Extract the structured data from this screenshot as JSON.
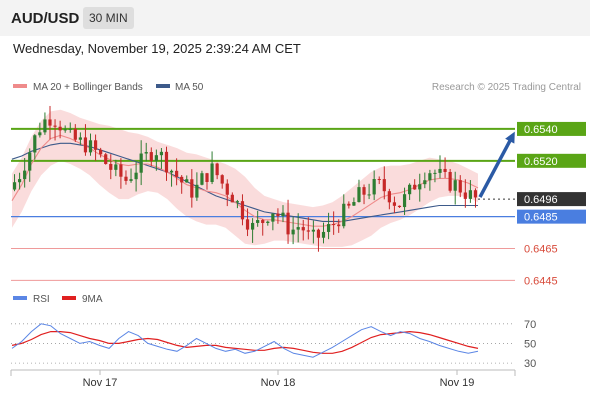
{
  "header": {
    "pair": "AUD/USD",
    "timeframe": "30 MIN",
    "datetime": "Wednesday, November 19, 2025 2:39:24 AM CET"
  },
  "legend": {
    "ma20": "MA 20 + Bollinger Bands",
    "ma50": "MA 50",
    "credit": "Research © 2025 Trading Central"
  },
  "colors": {
    "up": "#2e7d32",
    "down": "#c62828",
    "ma20": "#ef8b8b",
    "ma50": "#3d5a8a",
    "band": "#f9d6d6",
    "green_level": "#5aa516",
    "blue_level": "#4a7ee0",
    "red_level": "#ef9a9a",
    "arrow": "#2b5aa5",
    "rsi": "#5b86e5",
    "rsi_ma": "#e02020"
  },
  "chart_data": [
    {
      "type": "candlestick",
      "title": "AUD/USD 30 MIN",
      "price_range": [
        0.6439,
        0.6555
      ],
      "x_ticks": [
        "Nov 17",
        "Nov 18",
        "Nov 19"
      ],
      "last_price": "0.6496",
      "levels": [
        {
          "value": 0.654,
          "label": "0.6540",
          "kind": "resistance"
        },
        {
          "value": 0.652,
          "label": "0.6520",
          "kind": "resistance"
        },
        {
          "value": 0.6496,
          "label": "0.6496",
          "kind": "last"
        },
        {
          "value": 0.6485,
          "label": "0.6485",
          "kind": "pivot"
        },
        {
          "value": 0.6465,
          "label": "0.6465",
          "kind": "support"
        },
        {
          "value": 0.6445,
          "label": "0.6445",
          "kind": "support"
        }
      ],
      "close_path": [
        0.6502,
        0.6511,
        0.6525,
        0.654,
        0.6548,
        0.6545,
        0.6535,
        0.6532,
        0.653,
        0.6525,
        0.6518,
        0.6512,
        0.6508,
        0.6515,
        0.6522,
        0.6528,
        0.652,
        0.6512,
        0.6505,
        0.65,
        0.651,
        0.6515,
        0.6505,
        0.6498,
        0.6488,
        0.6478,
        0.6482,
        0.649,
        0.6484,
        0.6476,
        0.648,
        0.647,
        0.6473,
        0.6478,
        0.6485,
        0.649,
        0.6498,
        0.6502,
        0.6505,
        0.65,
        0.6492,
        0.6498,
        0.6508,
        0.6515,
        0.6512,
        0.6507,
        0.6505,
        0.65,
        0.6496
      ],
      "ma20_path": [
        0.6495,
        0.6505,
        0.6518,
        0.6528,
        0.6534,
        0.6536,
        0.6534,
        0.6531,
        0.6528,
        0.6524,
        0.6521,
        0.6518,
        0.6517,
        0.6518,
        0.6518,
        0.6516,
        0.6513,
        0.6509,
        0.6505,
        0.6503,
        0.6501,
        0.65,
        0.6498,
        0.6494,
        0.6489,
        0.6485,
        0.6483,
        0.6483,
        0.6482,
        0.6481,
        0.648,
        0.6479,
        0.6479,
        0.648,
        0.6482,
        0.6485,
        0.6489,
        0.6493,
        0.6497,
        0.6499,
        0.65,
        0.6502,
        0.6505,
        0.6508,
        0.6509,
        0.6509,
        0.6508,
        0.6506,
        0.6503
      ],
      "bb_upper": [
        0.6512,
        0.6522,
        0.6535,
        0.6545,
        0.6551,
        0.6552,
        0.655,
        0.6547,
        0.6545,
        0.6543,
        0.6542,
        0.654,
        0.6538,
        0.6537,
        0.6535,
        0.6532,
        0.653,
        0.6528,
        0.6525,
        0.6524,
        0.6522,
        0.652,
        0.6518,
        0.6515,
        0.651,
        0.6503,
        0.6498,
        0.6496,
        0.6494,
        0.6493,
        0.6492,
        0.6491,
        0.6492,
        0.6494,
        0.6498,
        0.6503,
        0.6508,
        0.6513,
        0.6516,
        0.6517,
        0.6517,
        0.6518,
        0.652,
        0.6522,
        0.6521,
        0.652,
        0.6518,
        0.6515,
        0.6512
      ],
      "bb_lower": [
        0.6478,
        0.6488,
        0.6501,
        0.6511,
        0.6517,
        0.652,
        0.6518,
        0.6515,
        0.6511,
        0.6505,
        0.65,
        0.6496,
        0.6496,
        0.6499,
        0.6501,
        0.65,
        0.6496,
        0.649,
        0.6485,
        0.6482,
        0.648,
        0.648,
        0.6478,
        0.6473,
        0.6468,
        0.6467,
        0.6468,
        0.647,
        0.647,
        0.6469,
        0.6468,
        0.6467,
        0.6466,
        0.6466,
        0.6466,
        0.6467,
        0.647,
        0.6473,
        0.6478,
        0.6481,
        0.6483,
        0.6486,
        0.649,
        0.6494,
        0.6497,
        0.6498,
        0.6498,
        0.6497,
        0.6494
      ],
      "ma50_path": [
        0.6521,
        0.6523,
        0.6526,
        0.6528,
        0.653,
        0.6531,
        0.6531,
        0.653,
        0.6529,
        0.6527,
        0.6525,
        0.6523,
        0.6521,
        0.6519,
        0.6517,
        0.6515,
        0.6513,
        0.651,
        0.6507,
        0.6504,
        0.6501,
        0.6498,
        0.6496,
        0.6494,
        0.6492,
        0.649,
        0.6488,
        0.6487,
        0.6486,
        0.6485,
        0.6484,
        0.6483,
        0.6482,
        0.6482,
        0.6482,
        0.6483,
        0.6484,
        0.6485,
        0.6486,
        0.6487,
        0.6488,
        0.6489,
        0.649,
        0.6491,
        0.6492,
        0.6492,
        0.6492,
        0.6492,
        0.6492
      ],
      "forecast_target": 0.654
    },
    {
      "type": "line",
      "title": "RSI",
      "series": [
        {
          "name": "RSI",
          "values": [
            45,
            52,
            62,
            70,
            68,
            60,
            55,
            50,
            52,
            48,
            45,
            55,
            62,
            58,
            50,
            47,
            44,
            42,
            48,
            55,
            50,
            45,
            42,
            44,
            40,
            42,
            47,
            52,
            45,
            40,
            38,
            36,
            41,
            46,
            52,
            58,
            64,
            67,
            62,
            58,
            62,
            60,
            55,
            52,
            48,
            45,
            42,
            40,
            42
          ]
        },
        {
          "name": "9MA",
          "values": [
            48,
            50,
            54,
            59,
            62,
            62,
            61,
            58,
            55,
            53,
            50,
            50,
            52,
            54,
            55,
            54,
            51,
            48,
            46,
            47,
            48,
            48,
            46,
            45,
            44,
            43,
            43,
            45,
            46,
            45,
            43,
            41,
            40,
            40,
            42,
            46,
            51,
            56,
            59,
            60,
            61,
            62,
            61,
            59,
            56,
            53,
            50,
            47,
            45
          ]
        }
      ],
      "y_ticks": [
        "70",
        "50",
        "30"
      ],
      "ylim": [
        25,
        82
      ]
    }
  ]
}
